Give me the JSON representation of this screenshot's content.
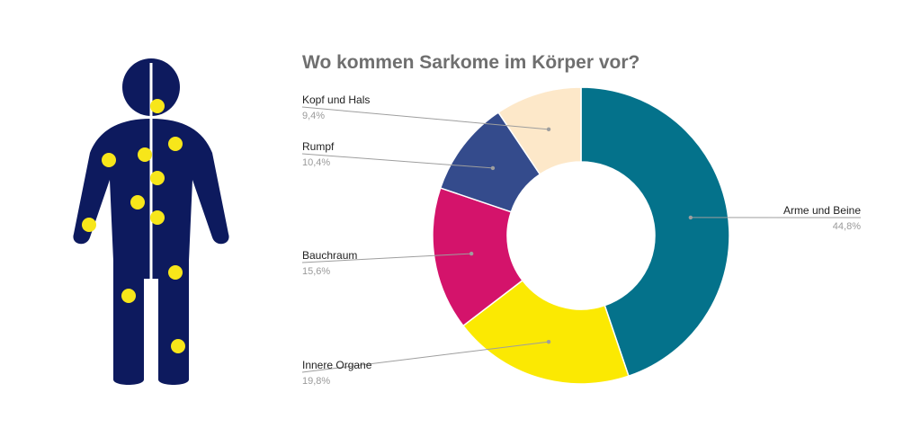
{
  "colors": {
    "figure_body": "#0d1a5e",
    "figure_dots": "#f7e61a",
    "figure_divider": "#ffffff"
  },
  "chart_data": {
    "type": "pie",
    "title": "Wo kommen Sarkome im Körper vor?",
    "donut": true,
    "unit": "%",
    "legend": "none",
    "slices": [
      {
        "label": "Arme und Beine",
        "value": 44.8,
        "display": "44,8%",
        "color": "#04728b"
      },
      {
        "label": "Innere Organe",
        "value": 19.8,
        "display": "19,8%",
        "color": "#fbe902"
      },
      {
        "label": "Bauchraum",
        "value": 15.6,
        "display": "15,6%",
        "color": "#d4136b"
      },
      {
        "label": "Rumpf",
        "value": 10.4,
        "display": "10,4%",
        "color": "#344b8c"
      },
      {
        "label": "Kopf und Hals",
        "value": 9.4,
        "display": "9,4%",
        "color": "#fde8c9"
      }
    ]
  }
}
